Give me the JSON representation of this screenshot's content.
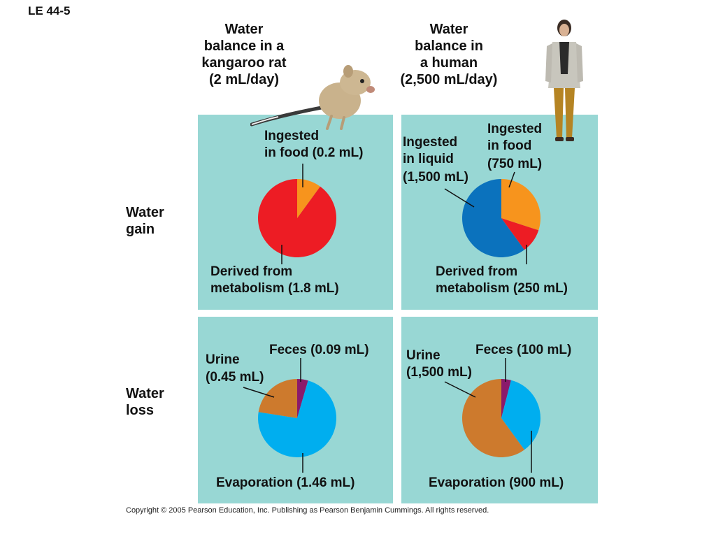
{
  "figure_label": "LE 44-5",
  "columns": {
    "rat": [
      "Water",
      "balance in a",
      "kangaroo rat",
      "(2 mL/day)"
    ],
    "human": [
      "Water",
      "balance in",
      "a human",
      "(2,500 mL/day)"
    ]
  },
  "rows": {
    "gain": [
      "Water",
      "gain"
    ],
    "loss": [
      "Water",
      "loss"
    ]
  },
  "colors": {
    "panel": "#98d7d4",
    "food": "#f7941d",
    "metabolism": "#ed1c24",
    "liquid": "#0b72bd",
    "feces": "#8b1a6b",
    "urine": "#cd7a2d",
    "evaporation": "#00aeef"
  },
  "chart_data": [
    {
      "type": "pie",
      "id": "rat-gain",
      "slices": [
        {
          "key": "food",
          "value": 0.2,
          "color": "#f7941d",
          "label": [
            "Ingested",
            "in food (0.2 mL)"
          ]
        },
        {
          "key": "metabolism",
          "value": 1.8,
          "color": "#ed1c24",
          "label": [
            "Derived from",
            "metabolism (1.8 mL)"
          ]
        }
      ]
    },
    {
      "type": "pie",
      "id": "human-gain",
      "slices": [
        {
          "key": "food",
          "value": 750,
          "color": "#f7941d",
          "label": [
            "Ingested",
            "in food",
            "(750 mL)"
          ]
        },
        {
          "key": "metabolism",
          "value": 250,
          "color": "#ed1c24",
          "label": [
            "Derived from",
            "metabolism (250 mL)"
          ]
        },
        {
          "key": "liquid",
          "value": 1500,
          "color": "#0b72bd",
          "label": [
            "Ingested",
            "in liquid",
            "(1,500 mL)"
          ]
        }
      ]
    },
    {
      "type": "pie",
      "id": "rat-loss",
      "slices": [
        {
          "key": "feces",
          "value": 0.09,
          "color": "#8b1a6b",
          "label": [
            "Feces (0.09 mL)"
          ]
        },
        {
          "key": "evaporation",
          "value": 1.46,
          "color": "#00aeef",
          "label": [
            "Evaporation (1.46 mL)"
          ]
        },
        {
          "key": "urine",
          "value": 0.45,
          "color": "#cd7a2d",
          "label": [
            "Urine",
            "(0.45 mL)"
          ]
        }
      ]
    },
    {
      "type": "pie",
      "id": "human-loss",
      "slices": [
        {
          "key": "feces",
          "value": 100,
          "color": "#8b1a6b",
          "label": [
            "Feces (100 mL)"
          ]
        },
        {
          "key": "evaporation",
          "value": 900,
          "color": "#00aeef",
          "label": [
            "Evaporation (900 mL)"
          ]
        },
        {
          "key": "urine",
          "value": 1500,
          "color": "#cd7a2d",
          "label": [
            "Urine",
            "(1,500 mL)"
          ]
        }
      ]
    }
  ],
  "copyright": "Copyright © 2005 Pearson Education, Inc. Publishing as Pearson Benjamin Cummings. All rights reserved."
}
